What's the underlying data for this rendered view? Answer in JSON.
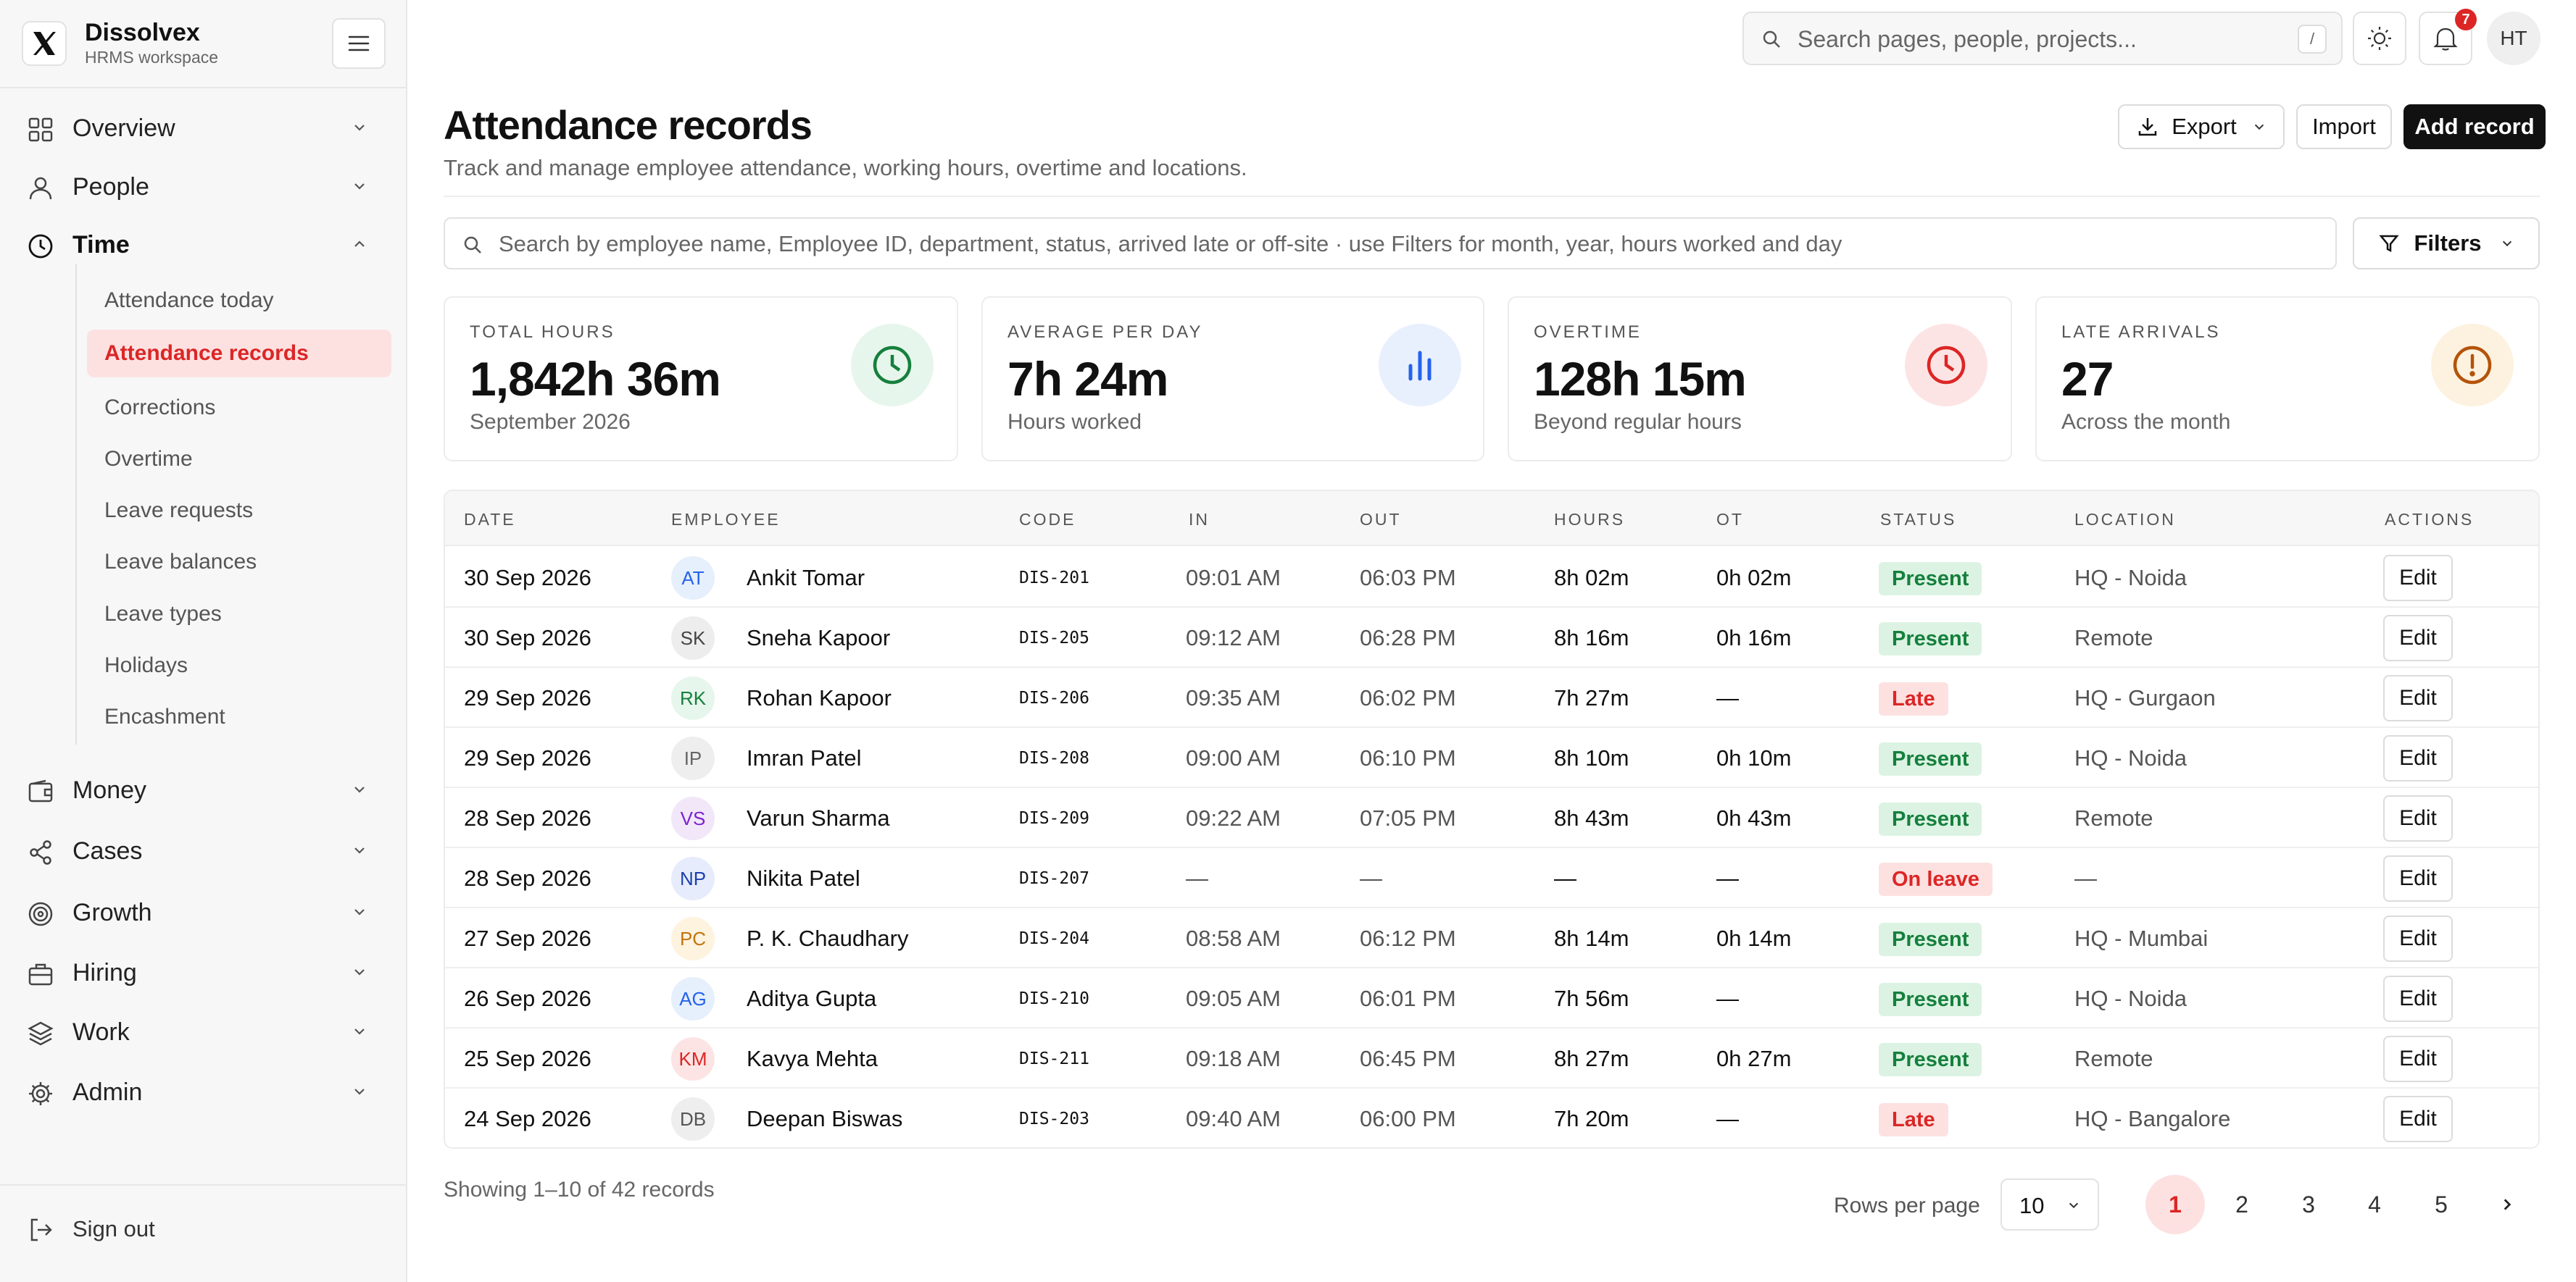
{
  "brand": {
    "name": "Dissolvex",
    "subtitle": "HRMS workspace"
  },
  "sidebar": {
    "groups": [
      {
        "label": "Overview",
        "icon": "grid-icon",
        "expanded": false
      },
      {
        "label": "People",
        "icon": "user-icon",
        "expanded": false
      },
      {
        "label": "Time",
        "icon": "clock-icon",
        "expanded": true
      },
      {
        "label": "Money",
        "icon": "wallet-icon",
        "expanded": false
      },
      {
        "label": "Cases",
        "icon": "share-icon",
        "expanded": false
      },
      {
        "label": "Growth",
        "icon": "target-icon",
        "expanded": false
      },
      {
        "label": "Hiring",
        "icon": "briefcase-icon",
        "expanded": false
      },
      {
        "label": "Work",
        "icon": "layers-icon",
        "expanded": false
      },
      {
        "label": "Admin",
        "icon": "gear-icon",
        "expanded": false
      }
    ],
    "time_items": [
      {
        "label": "Attendance today",
        "active": false
      },
      {
        "label": "Attendance records",
        "active": true
      },
      {
        "label": "Corrections",
        "active": false
      },
      {
        "label": "Overtime",
        "active": false
      },
      {
        "label": "Leave requests",
        "active": false
      },
      {
        "label": "Leave balances",
        "active": false
      },
      {
        "label": "Leave types",
        "active": false
      },
      {
        "label": "Holidays",
        "active": false
      },
      {
        "label": "Encashment",
        "active": false
      }
    ],
    "sign_out": "Sign out"
  },
  "topbar": {
    "search_placeholder": "Search pages, people, projects...",
    "search_shortcut": "/",
    "notification_count": "7",
    "user_initials": "HT"
  },
  "page": {
    "title": "Attendance records",
    "subtitle": "Track and manage employee attendance, working hours, overtime and locations.",
    "export_label": "Export",
    "import_label": "Import",
    "add_label": "Add record",
    "filter_placeholder": "Search by employee name, Employee ID, department, status, arrived late or off-site · use Filters for month, year, hours worked and day",
    "filters_label": "Filters"
  },
  "stats": [
    {
      "label": "TOTAL HOURS",
      "value": "1,842h 36m",
      "sub": "September 2026",
      "icon": "clock-icon",
      "color": "#15803d",
      "bg": "#e7f6ec"
    },
    {
      "label": "AVERAGE PER DAY",
      "value": "7h 24m",
      "sub": "Hours worked",
      "icon": "bar-chart-icon",
      "color": "#2563eb",
      "bg": "#e8f0fe"
    },
    {
      "label": "OVERTIME",
      "value": "128h 15m",
      "sub": "Beyond regular hours",
      "icon": "clock-icon",
      "color": "#dc2626",
      "bg": "#fde4e4"
    },
    {
      "label": "LATE ARRIVALS",
      "value": "27",
      "sub": "Across the month",
      "icon": "alert-circle-icon",
      "color": "#b45309",
      "bg": "#fdf2df"
    }
  ],
  "table": {
    "columns": [
      "DATE",
      "EMPLOYEE",
      "CODE",
      "IN",
      "OUT",
      "HOURS",
      "OT",
      "STATUS",
      "LOCATION",
      "ACTIONS"
    ],
    "rows": [
      {
        "date": "30 Sep 2026",
        "initials": "AT",
        "name": "Ankit Tomar",
        "code": "DIS-201",
        "in": "09:01 AM",
        "out": "06:03 PM",
        "hours": "8h 02m",
        "ot": "0h 02m",
        "status": "Present",
        "location": "HQ - Noida",
        "av_bg": "#e6effc",
        "av_fg": "#2563eb"
      },
      {
        "date": "30 Sep 2026",
        "initials": "SK",
        "name": "Sneha Kapoor",
        "code": "DIS-205",
        "in": "09:12 AM",
        "out": "06:28 PM",
        "hours": "8h 16m",
        "ot": "0h 16m",
        "status": "Present",
        "location": "Remote",
        "av_bg": "#ededed",
        "av_fg": "#444444"
      },
      {
        "date": "29 Sep 2026",
        "initials": "RK",
        "name": "Rohan Kapoor",
        "code": "DIS-206",
        "in": "09:35 AM",
        "out": "06:02 PM",
        "hours": "7h 27m",
        "ot": "—",
        "status": "Late",
        "location": "HQ - Gurgaon",
        "av_bg": "#e7f6ec",
        "av_fg": "#15803d"
      },
      {
        "date": "29 Sep 2026",
        "initials": "IP",
        "name": "Imran Patel",
        "code": "DIS-208",
        "in": "09:00 AM",
        "out": "06:10 PM",
        "hours": "8h 10m",
        "ot": "0h 10m",
        "status": "Present",
        "location": "HQ - Noida",
        "av_bg": "#eeeeee",
        "av_fg": "#666666"
      },
      {
        "date": "28 Sep 2026",
        "initials": "VS",
        "name": "Varun Sharma",
        "code": "DIS-209",
        "in": "09:22 AM",
        "out": "07:05 PM",
        "hours": "8h 43m",
        "ot": "0h 43m",
        "status": "Present",
        "location": "Remote",
        "av_bg": "#f1e7f8",
        "av_fg": "#7e22ce"
      },
      {
        "date": "28 Sep 2026",
        "initials": "NP",
        "name": "Nikita Patel",
        "code": "DIS-207",
        "in": "—",
        "out": "—",
        "hours": "—",
        "ot": "—",
        "status": "On leave",
        "location": "—",
        "av_bg": "#e6ecfb",
        "av_fg": "#1e40af"
      },
      {
        "date": "27 Sep 2026",
        "initials": "PC",
        "name": "P. K. Chaudhary",
        "code": "DIS-204",
        "in": "08:58 AM",
        "out": "06:12 PM",
        "hours": "8h 14m",
        "ot": "0h 14m",
        "status": "Present",
        "location": "HQ - Mumbai",
        "av_bg": "#fdf3df",
        "av_fg": "#c2740c"
      },
      {
        "date": "26 Sep 2026",
        "initials": "AG",
        "name": "Aditya Gupta",
        "code": "DIS-210",
        "in": "09:05 AM",
        "out": "06:01 PM",
        "hours": "7h 56m",
        "ot": "—",
        "status": "Present",
        "location": "HQ - Noida",
        "av_bg": "#e6effc",
        "av_fg": "#2563eb"
      },
      {
        "date": "25 Sep 2026",
        "initials": "KM",
        "name": "Kavya Mehta",
        "code": "DIS-211",
        "in": "09:18 AM",
        "out": "06:45 PM",
        "hours": "8h 27m",
        "ot": "0h 27m",
        "status": "Present",
        "location": "Remote",
        "av_bg": "#fde4e4",
        "av_fg": "#dc2626"
      },
      {
        "date": "24 Sep 2026",
        "initials": "DB",
        "name": "Deepan Biswas",
        "code": "DIS-203",
        "in": "09:40 AM",
        "out": "06:00 PM",
        "hours": "7h 20m",
        "ot": "—",
        "status": "Late",
        "location": "HQ - Bangalore",
        "av_bg": "#eeeeee",
        "av_fg": "#555555"
      }
    ],
    "edit_label": "Edit"
  },
  "status_colors": {
    "Present": {
      "bg": "#dcf3e3",
      "fg": "#15803d"
    },
    "Late": {
      "bg": "#fde1e1",
      "fg": "#dc2626"
    },
    "On leave": {
      "bg": "#fde1e1",
      "fg": "#dc2626"
    }
  },
  "footer": {
    "showing": "Showing 1–10 of 42 records",
    "rows_per_page_label": "Rows per page",
    "rows_per_page_value": "10",
    "pages": [
      "1",
      "2",
      "3",
      "4",
      "5"
    ],
    "current_page": "1"
  }
}
